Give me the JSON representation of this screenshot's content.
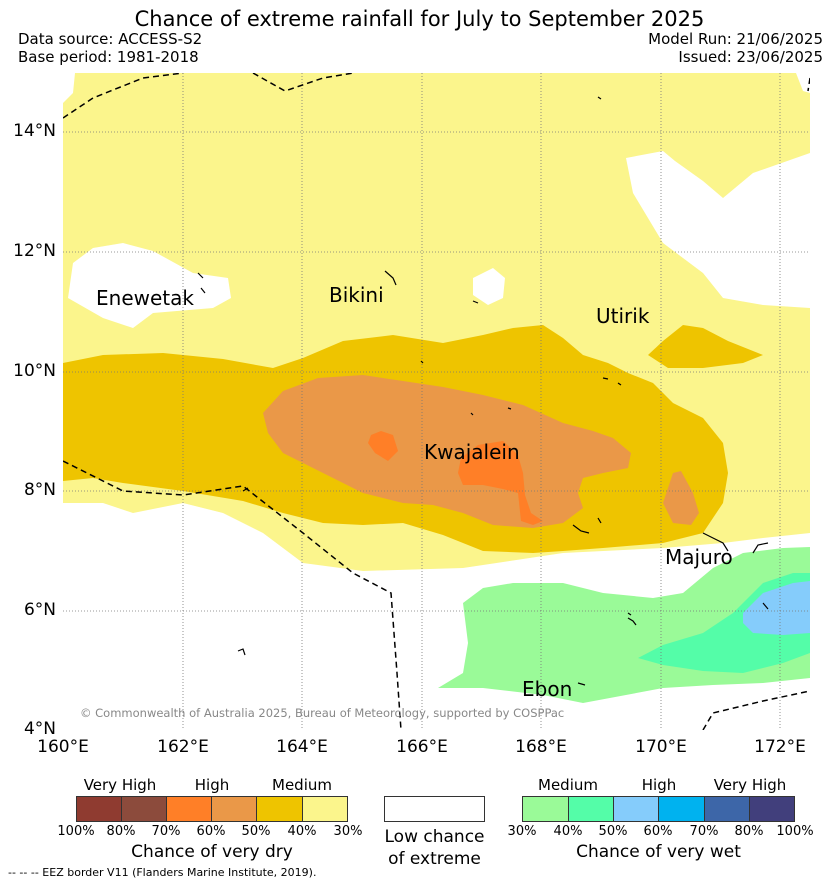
{
  "header": {
    "title": "Chance of extreme rainfall for July to September 2025",
    "data_source": "Data source: ACCESS-S2",
    "base_period": "Base period: 1981-2018",
    "model_run": "Model Run: 21/06/2025",
    "issued": "Issued: 23/06/2025"
  },
  "map": {
    "lat_labels": [
      "14°N",
      "12°N",
      "10°N",
      "8°N",
      "6°N",
      "4°N"
    ],
    "lon_labels": [
      "160°E",
      "162°E",
      "164°E",
      "166°E",
      "168°E",
      "170°E",
      "172°E"
    ],
    "places": {
      "enewetak": "Enewetak",
      "bikini": "Bikini",
      "utirik": "Utirik",
      "kwajalein": "Kwajalein",
      "majuro": "Majuro",
      "ebon": "Ebon"
    },
    "copyright": "© Commonwealth of Australia 2025, Bureau of Meteorology, supported by COSPPac"
  },
  "legend_dry": {
    "headers": [
      "Very High",
      "High",
      "Medium"
    ],
    "ticks": [
      "100%",
      "80%",
      "70%",
      "60%",
      "50%",
      "40%",
      "30%"
    ],
    "caption": "Chance of very dry",
    "colors": [
      "#8f3b30",
      "#8c4b3c",
      "#ff7f27",
      "#ea9848",
      "#eec400",
      "#fbf58c"
    ]
  },
  "legend_low": {
    "caption_line1": "Low chance",
    "caption_line2": "of extreme",
    "color": "#ffffff"
  },
  "legend_wet": {
    "headers": [
      "Medium",
      "High",
      "Very High"
    ],
    "ticks": [
      "30%",
      "40%",
      "50%",
      "60%",
      "70%",
      "80%",
      "100%"
    ],
    "caption": "Chance of very wet",
    "colors": [
      "#9afa98",
      "#54fda8",
      "#85ccfb",
      "#00b2ef",
      "#3d66a8",
      "#413f7c"
    ]
  },
  "footnote": "--  --  -- EEZ border V11 (Flanders Marine Institute, 2019)."
}
